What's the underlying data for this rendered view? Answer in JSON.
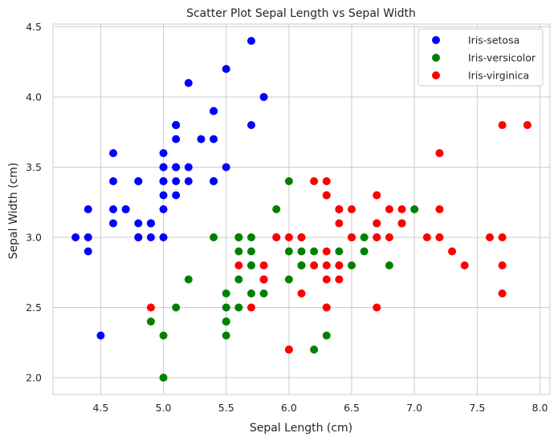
{
  "chart_data": {
    "type": "scatter",
    "title": "Scatter Plot Sepal Length vs Sepal Width",
    "xlabel": "Sepal Length (cm)",
    "ylabel": "Sepal Width (cm)",
    "xlim": [
      4.12,
      8.08
    ],
    "ylim": [
      1.88,
      4.52
    ],
    "xticks": [
      4.5,
      5.0,
      5.5,
      6.0,
      6.5,
      7.0,
      7.5,
      8.0
    ],
    "xtick_labels": [
      "4.5",
      "5.0",
      "5.5",
      "6.0",
      "6.5",
      "7.0",
      "7.5",
      "8.0"
    ],
    "yticks": [
      2.0,
      2.5,
      3.0,
      3.5,
      4.0,
      4.5
    ],
    "ytick_labels": [
      "2.0",
      "2.5",
      "3.0",
      "3.5",
      "4.0",
      "4.5"
    ],
    "grid": true,
    "legend_position": "top-right",
    "series": [
      {
        "name": "Iris-setosa",
        "color": "#0000ff",
        "points": [
          [
            5.1,
            3.5
          ],
          [
            4.9,
            3.0
          ],
          [
            4.7,
            3.2
          ],
          [
            4.6,
            3.1
          ],
          [
            5.0,
            3.6
          ],
          [
            5.4,
            3.9
          ],
          [
            4.6,
            3.4
          ],
          [
            5.0,
            3.4
          ],
          [
            4.4,
            2.9
          ],
          [
            4.9,
            3.1
          ],
          [
            5.4,
            3.7
          ],
          [
            4.8,
            3.4
          ],
          [
            4.8,
            3.0
          ],
          [
            4.3,
            3.0
          ],
          [
            5.8,
            4.0
          ],
          [
            5.7,
            4.4
          ],
          [
            5.4,
            3.9
          ],
          [
            5.1,
            3.5
          ],
          [
            5.7,
            3.8
          ],
          [
            5.1,
            3.8
          ],
          [
            5.4,
            3.4
          ],
          [
            5.1,
            3.7
          ],
          [
            4.6,
            3.6
          ],
          [
            5.1,
            3.3
          ],
          [
            4.8,
            3.4
          ],
          [
            5.0,
            3.0
          ],
          [
            5.0,
            3.4
          ],
          [
            5.2,
            3.5
          ],
          [
            5.2,
            3.4
          ],
          [
            4.7,
            3.2
          ],
          [
            4.8,
            3.1
          ],
          [
            5.4,
            3.4
          ],
          [
            5.2,
            4.1
          ],
          [
            5.5,
            4.2
          ],
          [
            4.9,
            3.1
          ],
          [
            5.0,
            3.2
          ],
          [
            5.5,
            3.5
          ],
          [
            4.9,
            3.1
          ],
          [
            4.4,
            3.0
          ],
          [
            5.1,
            3.4
          ],
          [
            5.0,
            3.5
          ],
          [
            4.5,
            2.3
          ],
          [
            4.4,
            3.2
          ],
          [
            5.0,
            3.5
          ],
          [
            5.1,
            3.8
          ],
          [
            4.8,
            3.0
          ],
          [
            5.1,
            3.8
          ],
          [
            4.6,
            3.2
          ],
          [
            5.3,
            3.7
          ],
          [
            5.0,
            3.3
          ]
        ]
      },
      {
        "name": "Iris-versicolor",
        "color": "#008000",
        "points": [
          [
            7.0,
            3.2
          ],
          [
            6.4,
            3.2
          ],
          [
            6.9,
            3.1
          ],
          [
            5.5,
            2.3
          ],
          [
            6.5,
            2.8
          ],
          [
            5.7,
            2.8
          ],
          [
            6.3,
            3.3
          ],
          [
            4.9,
            2.4
          ],
          [
            6.6,
            2.9
          ],
          [
            5.2,
            2.7
          ],
          [
            5.0,
            2.0
          ],
          [
            5.9,
            3.0
          ],
          [
            6.0,
            2.2
          ],
          [
            6.1,
            2.9
          ],
          [
            5.6,
            2.9
          ],
          [
            6.7,
            3.1
          ],
          [
            5.6,
            3.0
          ],
          [
            5.8,
            2.7
          ],
          [
            6.2,
            2.2
          ],
          [
            5.6,
            2.5
          ],
          [
            5.9,
            3.2
          ],
          [
            6.1,
            2.8
          ],
          [
            6.3,
            2.5
          ],
          [
            6.1,
            2.8
          ],
          [
            6.4,
            2.9
          ],
          [
            6.6,
            3.0
          ],
          [
            6.8,
            2.8
          ],
          [
            6.7,
            3.0
          ],
          [
            6.0,
            2.9
          ],
          [
            5.7,
            2.6
          ],
          [
            5.5,
            2.4
          ],
          [
            5.5,
            2.4
          ],
          [
            5.8,
            2.7
          ],
          [
            6.0,
            2.7
          ],
          [
            5.4,
            3.0
          ],
          [
            6.0,
            3.4
          ],
          [
            6.7,
            3.1
          ],
          [
            6.3,
            2.3
          ],
          [
            5.6,
            3.0
          ],
          [
            5.5,
            2.5
          ],
          [
            5.5,
            2.6
          ],
          [
            6.1,
            3.0
          ],
          [
            5.8,
            2.6
          ],
          [
            5.0,
            2.3
          ],
          [
            5.6,
            2.7
          ],
          [
            5.7,
            3.0
          ],
          [
            5.7,
            2.9
          ],
          [
            6.2,
            2.9
          ],
          [
            5.1,
            2.5
          ],
          [
            5.7,
            2.8
          ]
        ]
      },
      {
        "name": "Iris-virginica",
        "color": "#ff0000",
        "points": [
          [
            6.3,
            3.3
          ],
          [
            5.8,
            2.7
          ],
          [
            7.1,
            3.0
          ],
          [
            6.3,
            2.9
          ],
          [
            6.5,
            3.0
          ],
          [
            7.6,
            3.0
          ],
          [
            4.9,
            2.5
          ],
          [
            7.3,
            2.9
          ],
          [
            6.7,
            2.5
          ],
          [
            7.2,
            3.6
          ],
          [
            6.5,
            3.2
          ],
          [
            6.4,
            2.7
          ],
          [
            6.8,
            3.0
          ],
          [
            5.7,
            2.5
          ],
          [
            5.8,
            2.8
          ],
          [
            6.4,
            3.2
          ],
          [
            6.5,
            3.0
          ],
          [
            7.7,
            3.8
          ],
          [
            7.7,
            2.6
          ],
          [
            6.0,
            2.2
          ],
          [
            6.9,
            3.2
          ],
          [
            5.6,
            2.8
          ],
          [
            7.7,
            2.8
          ],
          [
            6.3,
            2.7
          ],
          [
            6.7,
            3.3
          ],
          [
            7.2,
            3.2
          ],
          [
            6.2,
            2.8
          ],
          [
            6.1,
            3.0
          ],
          [
            6.4,
            2.8
          ],
          [
            7.2,
            3.0
          ],
          [
            7.4,
            2.8
          ],
          [
            7.9,
            3.8
          ],
          [
            6.4,
            2.8
          ],
          [
            6.3,
            2.8
          ],
          [
            6.1,
            2.6
          ],
          [
            7.7,
            3.0
          ],
          [
            6.3,
            3.4
          ],
          [
            6.4,
            3.1
          ],
          [
            6.0,
            3.0
          ],
          [
            6.9,
            3.1
          ],
          [
            6.7,
            3.1
          ],
          [
            6.9,
            3.1
          ],
          [
            5.8,
            2.7
          ],
          [
            6.8,
            3.2
          ],
          [
            6.7,
            3.3
          ],
          [
            6.7,
            3.0
          ],
          [
            6.3,
            2.5
          ],
          [
            6.5,
            3.0
          ],
          [
            6.2,
            3.4
          ],
          [
            5.9,
            3.0
          ]
        ]
      }
    ]
  }
}
